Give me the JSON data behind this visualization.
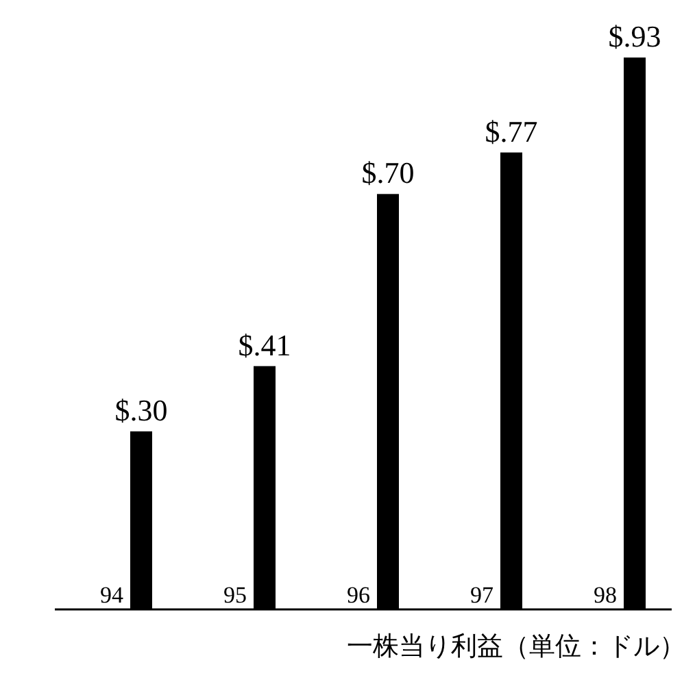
{
  "chart_data": {
    "type": "bar",
    "xlabel": "一株当り利益（単位：ドル）",
    "categories": [
      "94",
      "95",
      "96",
      "97",
      "98"
    ],
    "values": [
      0.3,
      0.41,
      0.7,
      0.77,
      0.93
    ],
    "value_labels": [
      "$.30",
      "$.41",
      "$.70",
      "$.77",
      "$.93"
    ],
    "color": "#000000"
  }
}
